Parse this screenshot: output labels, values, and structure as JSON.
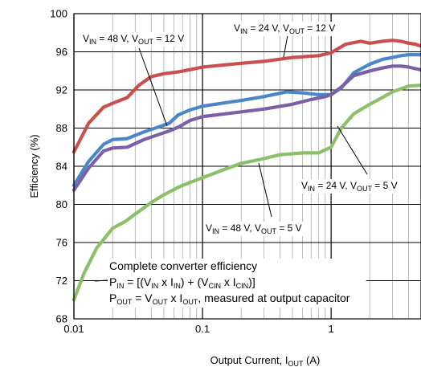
{
  "chart_data": {
    "type": "line",
    "xscale": "log",
    "xlim": [
      0.01,
      5
    ],
    "ylim": [
      68,
      100
    ],
    "xticks": [
      "0.01",
      "0.1",
      "1"
    ],
    "yticks": [
      "68",
      "72",
      "76",
      "80",
      "84",
      "88",
      "92",
      "96",
      "100"
    ],
    "grid": true,
    "ylabel": "Efficiency (%)",
    "xlabel": {
      "main": "Output Current, I",
      "sub": "OUT",
      "unit": " (A)"
    },
    "series": [
      {
        "key": "vin24_vout12",
        "color": "#c8504f",
        "x": [
          0.01,
          0.013,
          0.017,
          0.02,
          0.026,
          0.032,
          0.04,
          0.05,
          0.065,
          0.085,
          0.1,
          0.2,
          0.3,
          0.5,
          0.8,
          1.0,
          1.3,
          1.7,
          2.0,
          2.5,
          3.0,
          3.5,
          4.0,
          4.5,
          5.0
        ],
        "y": [
          85.5,
          88.5,
          90.2,
          90.6,
          91.2,
          92.5,
          93.4,
          93.7,
          93.9,
          94.2,
          94.4,
          94.8,
          95.0,
          95.4,
          95.6,
          95.9,
          96.8,
          97.1,
          96.9,
          97.1,
          97.2,
          97.1,
          96.9,
          96.8,
          96.6
        ]
      },
      {
        "key": "vin48_vout12",
        "color": "#4a86c8",
        "x": [
          0.01,
          0.013,
          0.017,
          0.02,
          0.026,
          0.035,
          0.045,
          0.055,
          0.065,
          0.08,
          0.1,
          0.2,
          0.3,
          0.45,
          0.6,
          0.8,
          1.0,
          1.2,
          1.5,
          2.0,
          2.5,
          3.0,
          3.5,
          4.0,
          5.0
        ],
        "y": [
          82.0,
          84.5,
          86.3,
          86.8,
          86.9,
          87.6,
          88.1,
          88.5,
          89.4,
          89.9,
          90.3,
          90.9,
          91.3,
          91.8,
          91.7,
          91.5,
          91.5,
          92.2,
          93.8,
          94.7,
          95.2,
          95.4,
          95.6,
          95.7,
          95.7
        ]
      },
      {
        "key": "vin24_vout5",
        "color": "#7b60a8",
        "x": [
          0.01,
          0.013,
          0.017,
          0.02,
          0.026,
          0.035,
          0.045,
          0.055,
          0.065,
          0.08,
          0.1,
          0.2,
          0.3,
          0.5,
          0.7,
          0.9,
          1.0,
          1.2,
          1.5,
          2.0,
          2.5,
          3.0,
          3.5,
          4.0,
          5.0
        ],
        "y": [
          81.5,
          83.8,
          85.6,
          85.9,
          86.0,
          86.8,
          87.3,
          87.7,
          88.1,
          88.8,
          89.2,
          89.7,
          90.0,
          90.5,
          91.0,
          91.3,
          91.5,
          92.3,
          93.5,
          94.0,
          94.3,
          94.5,
          94.5,
          94.4,
          94.1
        ]
      },
      {
        "key": "vin48_vout5",
        "color": "#8cc068",
        "x": [
          0.01,
          0.012,
          0.015,
          0.02,
          0.025,
          0.03,
          0.04,
          0.05,
          0.065,
          0.08,
          0.1,
          0.15,
          0.2,
          0.3,
          0.4,
          0.6,
          0.8,
          1.0,
          1.2,
          1.5,
          2.0,
          2.5,
          3.0,
          4.0,
          5.0
        ],
        "y": [
          70.0,
          72.8,
          75.4,
          77.5,
          78.2,
          79.0,
          80.2,
          81.0,
          81.8,
          82.3,
          82.8,
          83.7,
          84.3,
          84.8,
          85.2,
          85.4,
          85.4,
          86.0,
          88.0,
          89.5,
          90.5,
          91.2,
          91.8,
          92.4,
          92.5
        ]
      }
    ],
    "series_labels": {
      "vin48_vout12": {
        "a": "V",
        "a_sub": "IN",
        "b": " = 48 V, V",
        "b_sub": "OUT",
        "c": " = 12 V"
      },
      "vin24_vout12": {
        "a": "V",
        "a_sub": "IN",
        "b": " = 24 V, V",
        "b_sub": "OUT",
        "c": " = 12 V"
      },
      "vin24_vout5": {
        "a": "V",
        "a_sub": "IN",
        "b": " = 24 V, V",
        "b_sub": "OUT",
        "c": " = 5 V"
      },
      "vin48_vout5": {
        "a": "V",
        "a_sub": "IN",
        "b": " = 48 V, V",
        "b_sub": "OUT",
        "c": " = 5 V"
      }
    },
    "note": {
      "line1": "Complete converter efficiency",
      "line2": {
        "t1": "P",
        "s1": "IN",
        "t2": " = [(V",
        "s2": "IN",
        "t3": " x I",
        "s3": "IN",
        "t4": ") + (V",
        "s4": "CIN",
        "t5": " x I",
        "s5": "CIN",
        "t6": ")]"
      },
      "line3": {
        "t1": "P",
        "s1": "OUT",
        "t2": " = V",
        "s2": "OUT",
        "t3": " x I",
        "s3": "OUT",
        "t4": ", measured at output capacitor"
      }
    }
  }
}
